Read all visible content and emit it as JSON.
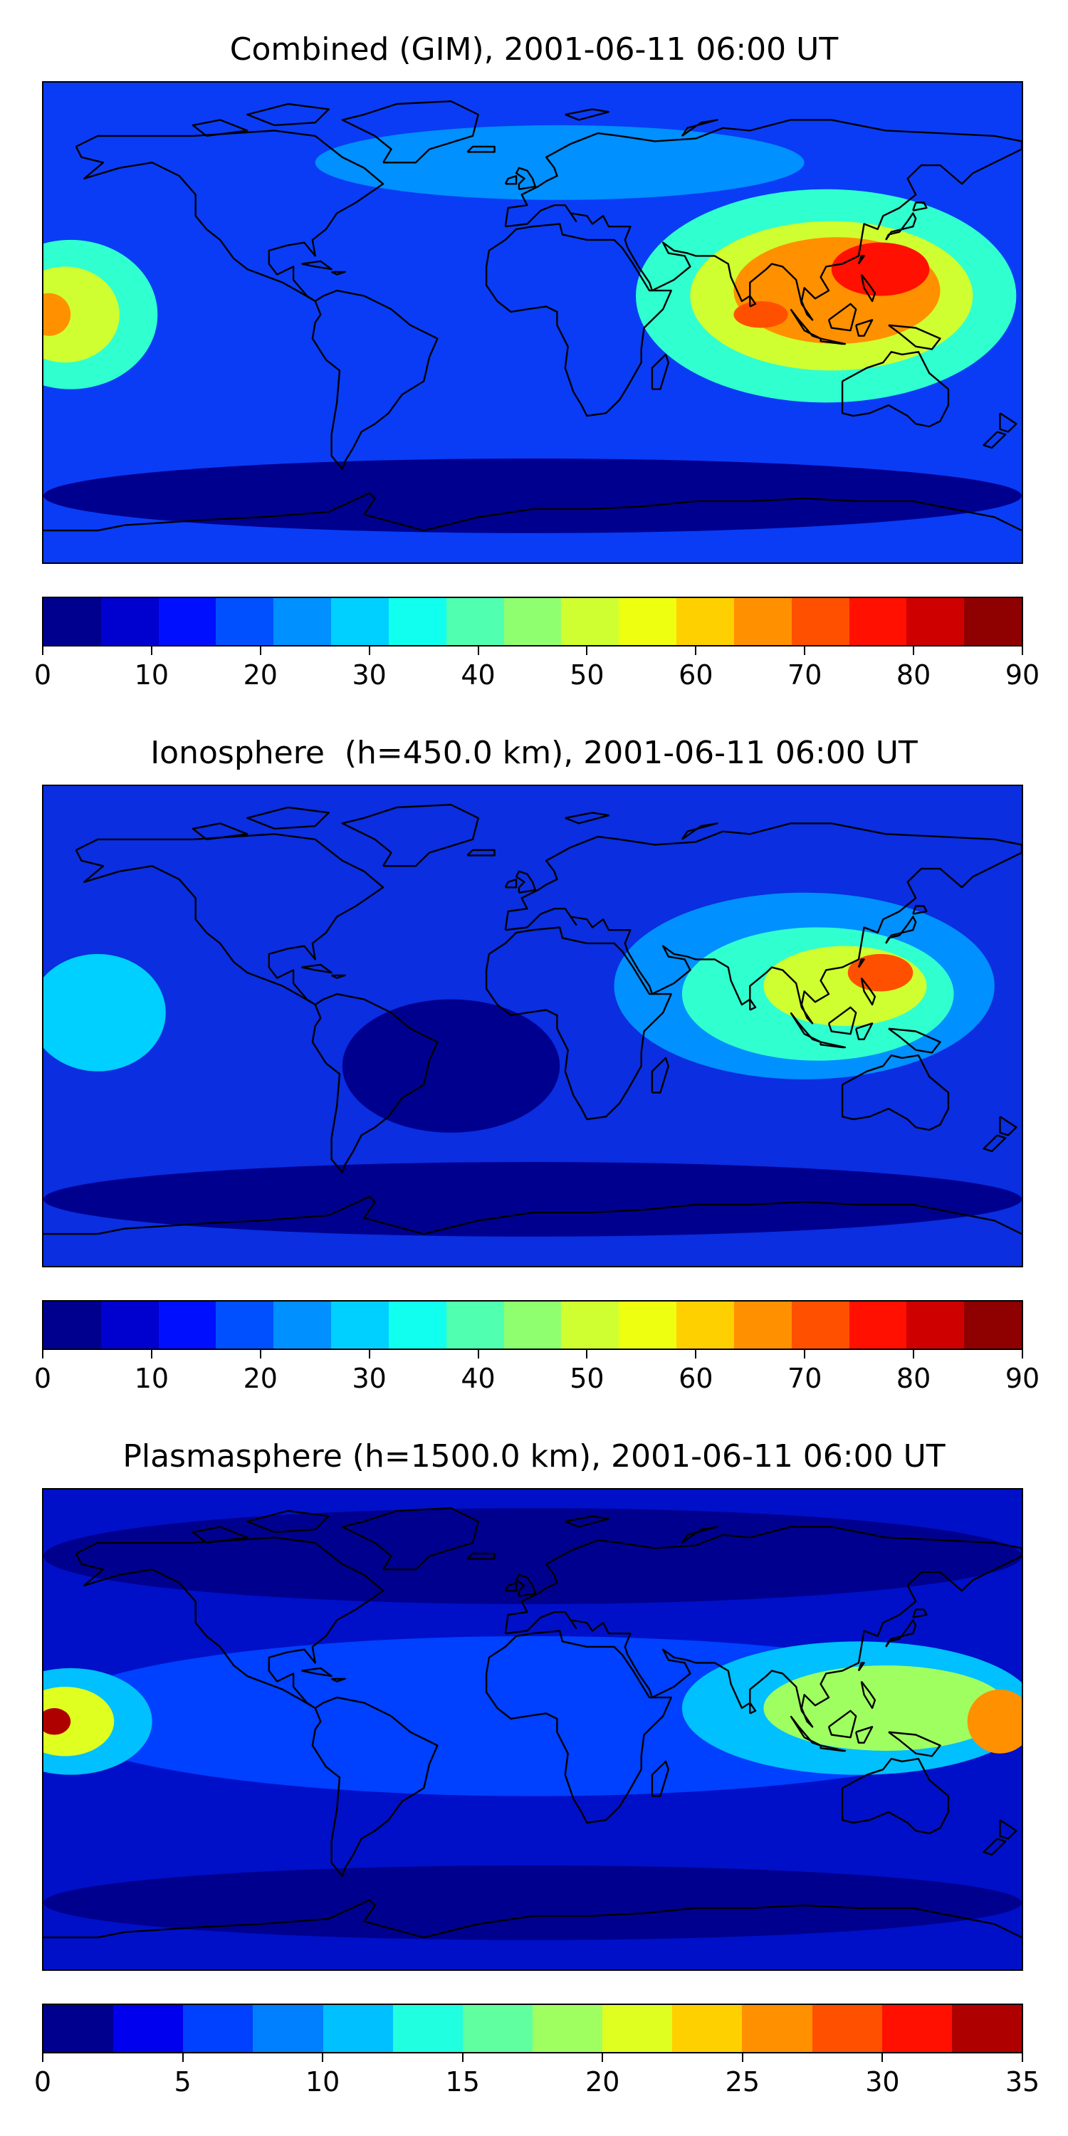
{
  "panels": [
    {
      "title": "Combined (GIM), 2001-06-11 06:00 UT",
      "colorbar": {
        "min": 0,
        "max": 90,
        "ticks": [
          "0",
          "10",
          "20",
          "30",
          "40",
          "50",
          "60",
          "70",
          "80",
          "90"
        ],
        "colors": [
          "#00008f",
          "#0000cf",
          "#0010ff",
          "#0050ff",
          "#0090ff",
          "#00d0ff",
          "#10ffef",
          "#50ffaf",
          "#90ff6f",
          "#cfff30",
          "#efff10",
          "#ffd000",
          "#ff9000",
          "#ff5000",
          "#ff1000",
          "#cf0000",
          "#8f0000"
        ]
      },
      "map": {
        "background": "#0a3cf5",
        "features": [
          {
            "lon": 108,
            "lat": 10,
            "rx": 70,
            "ry": 40,
            "color": "#30ffcf"
          },
          {
            "lon": 110,
            "lat": 10,
            "rx": 52,
            "ry": 28,
            "color": "#cfff30"
          },
          {
            "lon": 112,
            "lat": 12,
            "rx": 38,
            "ry": 20,
            "color": "#ff9000"
          },
          {
            "lon": 128,
            "lat": 20,
            "rx": 18,
            "ry": 10,
            "color": "#ff1000"
          },
          {
            "lon": 84,
            "lat": 3,
            "rx": 10,
            "ry": 5,
            "color": "#ff5000"
          },
          {
            "lon": -170,
            "lat": 3,
            "rx": 32,
            "ry": 28,
            "color": "#30ffcf"
          },
          {
            "lon": -172,
            "lat": 3,
            "rx": 20,
            "ry": 18,
            "color": "#cfff30"
          },
          {
            "lon": -178,
            "lat": 3,
            "rx": 8,
            "ry": 8,
            "color": "#ff9000"
          },
          {
            "lon": 10,
            "lat": 60,
            "rx": 90,
            "ry": 14,
            "color": "#0090ff"
          },
          {
            "lon": 0,
            "lat": -65,
            "rx": 180,
            "ry": 14,
            "color": "#00008f"
          }
        ]
      }
    },
    {
      "title": "Ionosphere  (h=450.0 km), 2001-06-11 06:00 UT",
      "colorbar": {
        "min": 0,
        "max": 90,
        "ticks": [
          "0",
          "10",
          "20",
          "30",
          "40",
          "50",
          "60",
          "70",
          "80",
          "90"
        ],
        "colors": [
          "#00008f",
          "#0000cf",
          "#0010ff",
          "#0050ff",
          "#0090ff",
          "#00d0ff",
          "#10ffef",
          "#50ffaf",
          "#90ff6f",
          "#cfff30",
          "#efff10",
          "#ffd000",
          "#ff9000",
          "#ff5000",
          "#ff1000",
          "#cf0000",
          "#8f0000"
        ]
      },
      "map": {
        "background": "#0a2ee0",
        "features": [
          {
            "lon": 100,
            "lat": 15,
            "rx": 70,
            "ry": 35,
            "color": "#0090ff"
          },
          {
            "lon": 105,
            "lat": 12,
            "rx": 50,
            "ry": 25,
            "color": "#30ffcf"
          },
          {
            "lon": 115,
            "lat": 15,
            "rx": 30,
            "ry": 15,
            "color": "#cfff30"
          },
          {
            "lon": 128,
            "lat": 20,
            "rx": 12,
            "ry": 7,
            "color": "#ff5000"
          },
          {
            "lon": -160,
            "lat": 5,
            "rx": 25,
            "ry": 22,
            "color": "#00d0ff"
          },
          {
            "lon": -30,
            "lat": -15,
            "rx": 40,
            "ry": 25,
            "color": "#00008f"
          },
          {
            "lon": 0,
            "lat": -65,
            "rx": 180,
            "ry": 14,
            "color": "#00008f"
          }
        ]
      }
    },
    {
      "title": "Plasmasphere (h=1500.0 km), 2001-06-11 06:00 UT",
      "colorbar": {
        "min": 0,
        "max": 35,
        "ticks": [
          "0",
          "5",
          "10",
          "15",
          "20",
          "25",
          "30",
          "35"
        ],
        "colors": [
          "#00008f",
          "#0000ef",
          "#0040ff",
          "#0080ff",
          "#00c0ff",
          "#20ffdf",
          "#60ff9f",
          "#a0ff60",
          "#dfff20",
          "#ffd000",
          "#ff9000",
          "#ff5000",
          "#ff1000",
          "#af0000"
        ]
      },
      "map": {
        "background": "#0010c8",
        "features": [
          {
            "lon": 0,
            "lat": 5,
            "rx": 180,
            "ry": 30,
            "color": "#0040ff"
          },
          {
            "lon": 120,
            "lat": 8,
            "rx": 65,
            "ry": 25,
            "color": "#00c0ff"
          },
          {
            "lon": 130,
            "lat": 8,
            "rx": 45,
            "ry": 16,
            "color": "#a0ff60"
          },
          {
            "lon": 172,
            "lat": 3,
            "rx": 12,
            "ry": 12,
            "color": "#ff9000"
          },
          {
            "lon": -170,
            "lat": 3,
            "rx": 30,
            "ry": 20,
            "color": "#00c0ff"
          },
          {
            "lon": -172,
            "lat": 3,
            "rx": 18,
            "ry": 13,
            "color": "#dfff20"
          },
          {
            "lon": -176,
            "lat": 3,
            "rx": 6,
            "ry": 5,
            "color": "#af0000"
          },
          {
            "lon": 0,
            "lat": 65,
            "rx": 180,
            "ry": 18,
            "color": "#00008f"
          },
          {
            "lon": 0,
            "lat": -65,
            "rx": 180,
            "ry": 14,
            "color": "#00008f"
          }
        ]
      }
    }
  ],
  "coastline_color": "#000000"
}
